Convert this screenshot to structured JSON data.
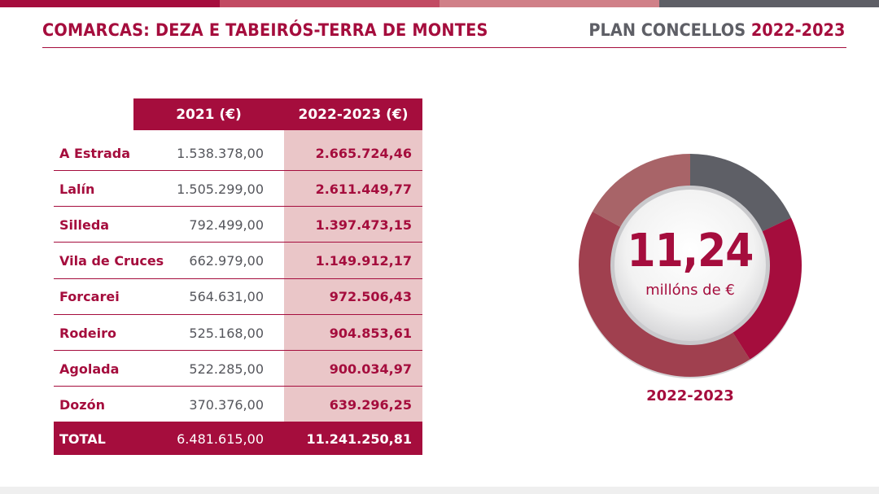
{
  "header": {
    "title": "COMARCAS: DEZA E TABEIRÓS-TERRA DE MONTES",
    "plan_label": "PLAN CONCELLOS",
    "plan_years": "2022-2023"
  },
  "colors": {
    "primary": "#a50d3d",
    "pink_light": "#eac6c8",
    "grey": "#5e5f66",
    "stripe_1": "#a50d3d",
    "stripe_2": "#c24b63",
    "stripe_3": "#d08088",
    "stripe_4": "#5e5f66"
  },
  "table": {
    "columns": [
      "2021 (€)",
      "2022-2023 (€)"
    ],
    "rows": [
      {
        "name": "A Estrada",
        "y2021": "1.538.378,00",
        "y2022": "2.665.724,46"
      },
      {
        "name": "Lalín",
        "y2021": "1.505.299,00",
        "y2022": "2.611.449,77"
      },
      {
        "name": "Silleda",
        "y2021": "792.499,00",
        "y2022": "1.397.473,15"
      },
      {
        "name": "Vila de Cruces",
        "y2021": "662.979,00",
        "y2022": "1.149.912,17"
      },
      {
        "name": "Forcarei",
        "y2021": "564.631,00",
        "y2022": "972.506,43"
      },
      {
        "name": "Rodeiro",
        "y2021": "525.168,00",
        "y2022": "904.853,61"
      },
      {
        "name": "Agolada",
        "y2021": "522.285,00",
        "y2022": "900.034,97"
      },
      {
        "name": "Dozón",
        "y2021": "370.376,00",
        "y2022": "639.296,25"
      }
    ],
    "total": {
      "name": "TOTAL",
      "y2021": "6.481.615,00",
      "y2022": "11.241.250,81"
    }
  },
  "donut": {
    "value": "11,24",
    "unit": "millóns de €",
    "year": "2022-2023",
    "segments": [
      {
        "fraction": 0.18,
        "color": "#5e5f66"
      },
      {
        "fraction": 0.23,
        "color": "#a50d3d"
      },
      {
        "fraction": 0.42,
        "color": "#a0404f"
      },
      {
        "fraction": 0.17,
        "color": "#a86468"
      }
    ]
  }
}
